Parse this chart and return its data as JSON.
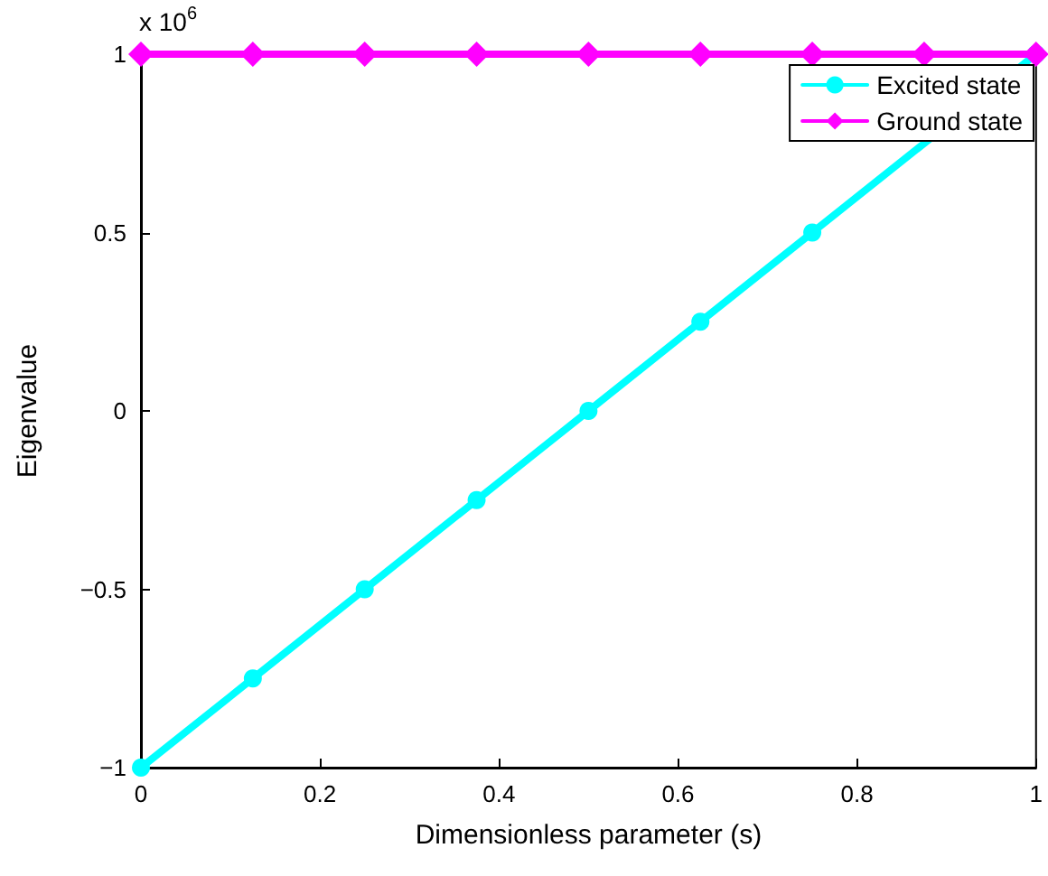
{
  "chart_data": {
    "type": "line",
    "xlabel": "Dimensionless parameter (s)",
    "ylabel": "Eigenvalue",
    "annotations": [
      "x 10$^{6}$"
    ],
    "x": [
      0,
      0.125,
      0.25,
      0.375,
      0.5,
      0.625,
      0.75,
      0.875,
      1
    ],
    "series": [
      {
        "name": "Excited state",
        "color": "#00ffff",
        "marker": "circle",
        "values": [
          -1,
          -0.75,
          -0.5,
          -0.25,
          0,
          0.25,
          0.5,
          null,
          1
        ]
      },
      {
        "name": "Ground state",
        "color": "#ff00ff",
        "marker": "diamond",
        "values": [
          1,
          1,
          1,
          1,
          1,
          1,
          1,
          1,
          1
        ]
      }
    ],
    "xlim": [
      0,
      1
    ],
    "xticks": [
      0,
      0.2,
      0.4,
      0.6,
      0.8,
      1
    ],
    "ylim": [
      -1,
      1
    ],
    "yticks": [
      -1,
      -0.5,
      0,
      0.5,
      1
    ],
    "grid": false,
    "legend": "top right",
    "line_style": "solid"
  }
}
